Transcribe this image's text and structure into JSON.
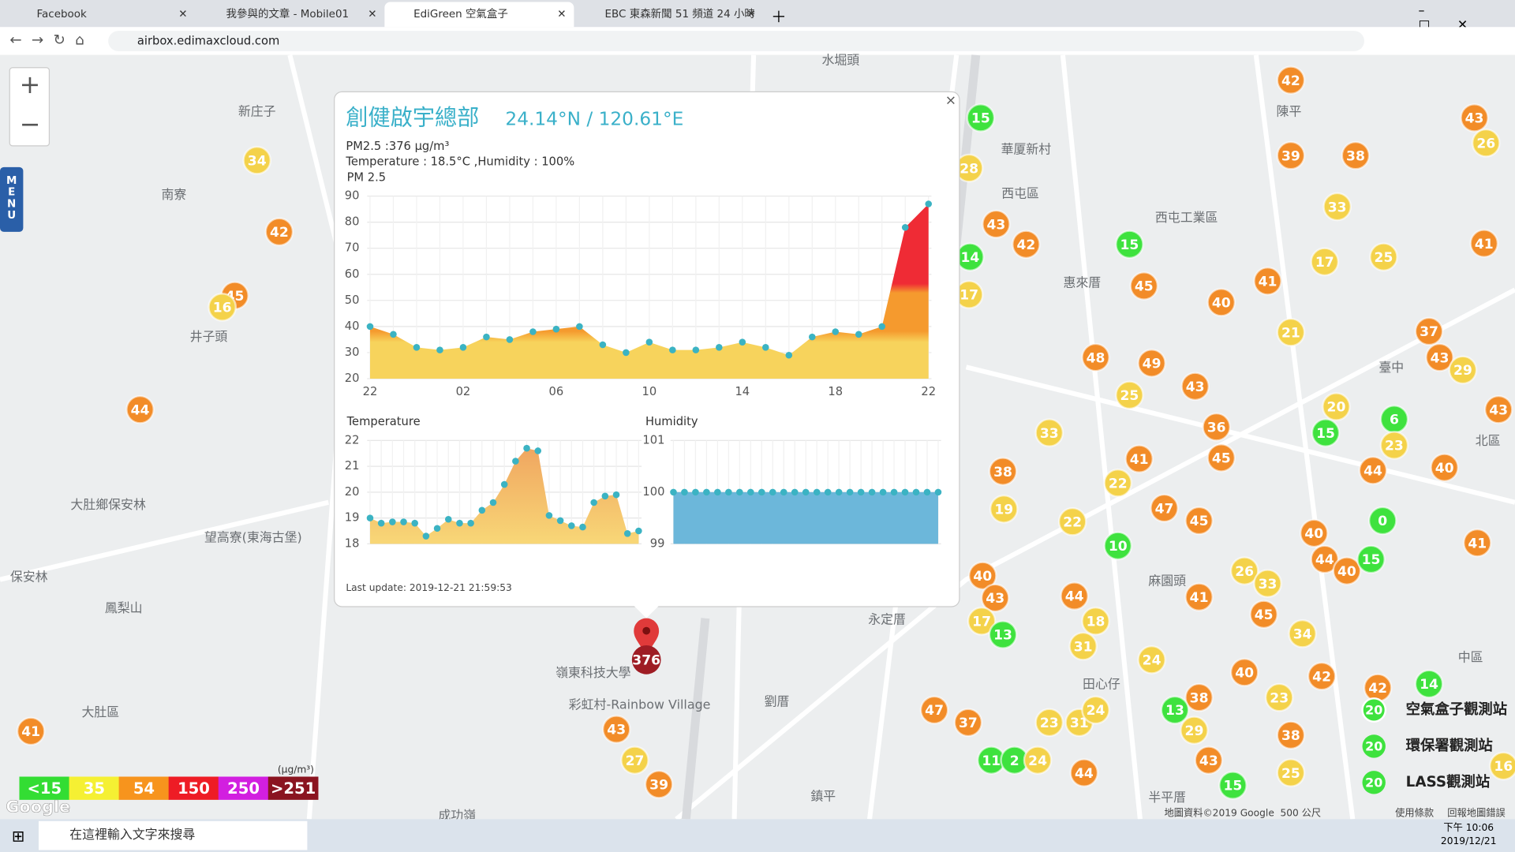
{
  "browser": {
    "tabs": [
      "Facebook",
      "我參與的文章 - Mobile01",
      "EdiGreen 空氣盒子",
      "EBC 東森新聞 51 頻道 24 小時"
    ],
    "url": "airbox.edimaxcloud.com"
  },
  "map": {
    "menu": "MENU",
    "zoom_in": "+",
    "zoom_out": "−",
    "places": [
      "新庄子",
      "南寮",
      "井子頭",
      "大肚鄉保安林",
      "保安林",
      "鳳梨山",
      "大肚區",
      "望高寮(東海古堡)",
      "西屯區",
      "華厦新村",
      "西屯工業區",
      "惠來厝",
      "水堀頭",
      "陳平",
      "臺中",
      "北區",
      "永定厝",
      "麻園頭",
      "田心仔",
      "中區",
      "劉厝",
      "鎮平",
      "彩虹村-Rainbow Village",
      "嶺東科技大學",
      "成功嶺",
      "半平厝"
    ],
    "markers": [
      {
        "value": 34,
        "color": "#f4d24a"
      },
      {
        "value": 42,
        "color": "#f28c28"
      },
      {
        "value": 45,
        "color": "#f28c28"
      },
      {
        "value": 16,
        "color": "#f4d24a"
      },
      {
        "value": 44,
        "color": "#f28c28"
      },
      {
        "value": 41,
        "color": "#f28c28"
      },
      {
        "value": 43,
        "color": "#f28c28"
      },
      {
        "value": 27,
        "color": "#f4d24a"
      },
      {
        "value": 39,
        "color": "#f28c28"
      },
      {
        "value": 15,
        "color": "#3ee23e"
      },
      {
        "value": 28,
        "color": "#f4d24a"
      },
      {
        "value": 43,
        "color": "#f28c28"
      },
      {
        "value": 42,
        "color": "#f28c28"
      },
      {
        "value": 14,
        "color": "#3ee23e"
      },
      {
        "value": 17,
        "color": "#f4d24a"
      },
      {
        "value": 15,
        "color": "#3ee23e"
      },
      {
        "value": 45,
        "color": "#f28c28"
      },
      {
        "value": 48,
        "color": "#f28c28"
      },
      {
        "value": 49,
        "color": "#f28c28"
      },
      {
        "value": 25,
        "color": "#f4d24a"
      },
      {
        "value": 43,
        "color": "#f28c28"
      },
      {
        "value": 40,
        "color": "#f28c28"
      },
      {
        "value": 41,
        "color": "#f28c28"
      },
      {
        "value": 42,
        "color": "#f28c28"
      },
      {
        "value": 39,
        "color": "#f28c28"
      },
      {
        "value": 38,
        "color": "#f28c28"
      },
      {
        "value": 33,
        "color": "#f4d24a"
      },
      {
        "value": 17,
        "color": "#f4d24a"
      },
      {
        "value": 25,
        "color": "#f4d24a"
      },
      {
        "value": 21,
        "color": "#f4d24a"
      },
      {
        "value": 41,
        "color": "#f28c28"
      },
      {
        "value": 43,
        "color": "#f28c28"
      },
      {
        "value": 26,
        "color": "#f4d24a"
      },
      {
        "value": 37,
        "color": "#f28c28"
      },
      {
        "value": 43,
        "color": "#f28c28"
      },
      {
        "value": 29,
        "color": "#f4d24a"
      },
      {
        "value": 33,
        "color": "#f4d24a"
      },
      {
        "value": 41,
        "color": "#f28c28"
      },
      {
        "value": 38,
        "color": "#f28c28"
      },
      {
        "value": 19,
        "color": "#f4d24a"
      },
      {
        "value": 22,
        "color": "#f4d24a"
      },
      {
        "value": 22,
        "color": "#f4d24a"
      },
      {
        "value": 47,
        "color": "#f28c28"
      },
      {
        "value": 45,
        "color": "#f28c28"
      },
      {
        "value": 36,
        "color": "#f28c28"
      },
      {
        "value": 45,
        "color": "#f28c28"
      },
      {
        "value": 10,
        "color": "#3ee23e"
      },
      {
        "value": 20,
        "color": "#f4d24a"
      },
      {
        "value": 15,
        "color": "#3ee23e"
      },
      {
        "value": 6,
        "color": "#3ee23e"
      },
      {
        "value": 23,
        "color": "#f4d24a"
      },
      {
        "value": 44,
        "color": "#f28c28"
      },
      {
        "value": 40,
        "color": "#f28c28"
      },
      {
        "value": 43,
        "color": "#f28c28"
      },
      {
        "value": 0,
        "color": "#3ee23e"
      },
      {
        "value": 40,
        "color": "#f28c28"
      },
      {
        "value": 44,
        "color": "#f28c28"
      },
      {
        "value": 40,
        "color": "#f28c28"
      },
      {
        "value": 15,
        "color": "#3ee23e"
      },
      {
        "value": 41,
        "color": "#f28c28"
      },
      {
        "value": 26,
        "color": "#f4d24a"
      },
      {
        "value": 33,
        "color": "#f4d24a"
      },
      {
        "value": 45,
        "color": "#f28c28"
      },
      {
        "value": 41,
        "color": "#f28c28"
      },
      {
        "value": 34,
        "color": "#f4d24a"
      },
      {
        "value": 40,
        "color": "#f28c28"
      },
      {
        "value": 43,
        "color": "#f28c28"
      },
      {
        "value": 17,
        "color": "#f4d24a"
      },
      {
        "value": 13,
        "color": "#3ee23e"
      },
      {
        "value": 44,
        "color": "#f28c28"
      },
      {
        "value": 18,
        "color": "#f4d24a"
      },
      {
        "value": 31,
        "color": "#f4d24a"
      },
      {
        "value": 24,
        "color": "#f4d24a"
      },
      {
        "value": 40,
        "color": "#f28c28"
      },
      {
        "value": 42,
        "color": "#f28c28"
      },
      {
        "value": 42,
        "color": "#f28c28"
      },
      {
        "value": 14,
        "color": "#3ee23e"
      },
      {
        "value": 23,
        "color": "#f4d24a"
      },
      {
        "value": 38,
        "color": "#f28c28"
      },
      {
        "value": 13,
        "color": "#3ee23e"
      },
      {
        "value": 29,
        "color": "#f4d24a"
      },
      {
        "value": 38,
        "color": "#f28c28"
      },
      {
        "value": 43,
        "color": "#f28c28"
      },
      {
        "value": 15,
        "color": "#3ee23e"
      },
      {
        "value": 25,
        "color": "#f4d24a"
      },
      {
        "value": 47,
        "color": "#f28c28"
      },
      {
        "value": 37,
        "color": "#f28c28"
      },
      {
        "value": 23,
        "color": "#f4d24a"
      },
      {
        "value": 31,
        "color": "#f4d24a"
      },
      {
        "value": 24,
        "color": "#f4d24a"
      },
      {
        "value": 11,
        "color": "#3ee23e"
      },
      {
        "value": 2,
        "color": "#3ee23e"
      },
      {
        "value": 24,
        "color": "#f4d24a"
      },
      {
        "value": 44,
        "color": "#f28c28"
      },
      {
        "value": 16,
        "color": "#f4d24a"
      }
    ],
    "selected_marker": {
      "value": 376,
      "color": "#9e1c24"
    },
    "legend": {
      "unit": "(μg/m³)",
      "items": [
        {
          "label": "<15",
          "color": "#33dd33"
        },
        {
          "label": "35",
          "color": "#f5f033"
        },
        {
          "label": "54",
          "color": "#f7941d"
        },
        {
          "label": "150",
          "color": "#ee1c25"
        },
        {
          "label": "250",
          "color": "#d21fe0"
        },
        {
          "label": ">251",
          "color": "#8a1420"
        }
      ]
    },
    "station_legend": [
      {
        "label": "空氣盒子觀測站",
        "value": 20
      },
      {
        "label": "環保署觀測站",
        "value": 20
      },
      {
        "label": "LASS觀測站",
        "value": 20
      }
    ],
    "footer": [
      "地圖資料©2019 Google",
      "500 公尺",
      "使用條款",
      "回報地圖錯誤"
    ],
    "google": "Google"
  },
  "popup": {
    "title": "創健啟宇總部",
    "coords": "24.14°N / 120.61°E",
    "close": "×",
    "pm25": "PM2.5 :376 μg/m³",
    "weather": "Temperature : 18.5°C ,Humidity : 100%",
    "last_update": "Last update: 2019-12-21 21:59:53"
  },
  "chart_data": [
    {
      "type": "area",
      "title": "PM 2.5",
      "categories": [
        "22",
        null,
        null,
        null,
        "02",
        null,
        null,
        null,
        "06",
        null,
        null,
        null,
        "10",
        null,
        null,
        null,
        "14",
        null,
        null,
        null,
        "18",
        null,
        null,
        null,
        "22"
      ],
      "values": [
        40,
        37,
        32,
        31,
        32,
        36,
        35,
        38,
        39,
        40,
        33,
        30,
        34,
        31,
        31,
        32,
        34,
        32,
        29,
        36,
        38,
        37,
        40,
        78,
        87
      ],
      "ylim": [
        20,
        90
      ],
      "yticks": [
        20,
        30,
        40,
        50,
        60,
        70,
        80,
        90
      ],
      "grid": true,
      "color": "gradient",
      "point_color": "#3bb3c3"
    },
    {
      "type": "area",
      "title": "Temperature",
      "values": [
        19.0,
        18.8,
        18.85,
        18.85,
        18.8,
        18.3,
        18.6,
        18.95,
        18.8,
        18.8,
        19.3,
        19.6,
        20.3,
        21.2,
        21.7,
        21.6,
        19.1,
        18.9,
        18.7,
        18.65,
        19.6,
        19.85,
        19.9,
        18.4,
        18.5
      ],
      "ylim": [
        18,
        22
      ],
      "yticks": [
        18,
        19,
        20,
        21,
        22
      ],
      "grid": true,
      "color": "#f5c47c",
      "point_color": "#3bb3c3"
    },
    {
      "type": "area",
      "title": "Humidity",
      "values": [
        100,
        100,
        100,
        100,
        100,
        100,
        100,
        100,
        100,
        100,
        100,
        100,
        100,
        100,
        100,
        100,
        100,
        100,
        100,
        100,
        100,
        100,
        100,
        100,
        100
      ],
      "ylim": [
        99,
        101
      ],
      "yticks": [
        99,
        100,
        101
      ],
      "grid": true,
      "color": "#6cb7da",
      "point_color": "#3bb3c3"
    }
  ],
  "taskbar": {
    "search": "在這裡輸入文字來搜尋",
    "time": "下午 10:06",
    "date": "2019/12/21"
  }
}
